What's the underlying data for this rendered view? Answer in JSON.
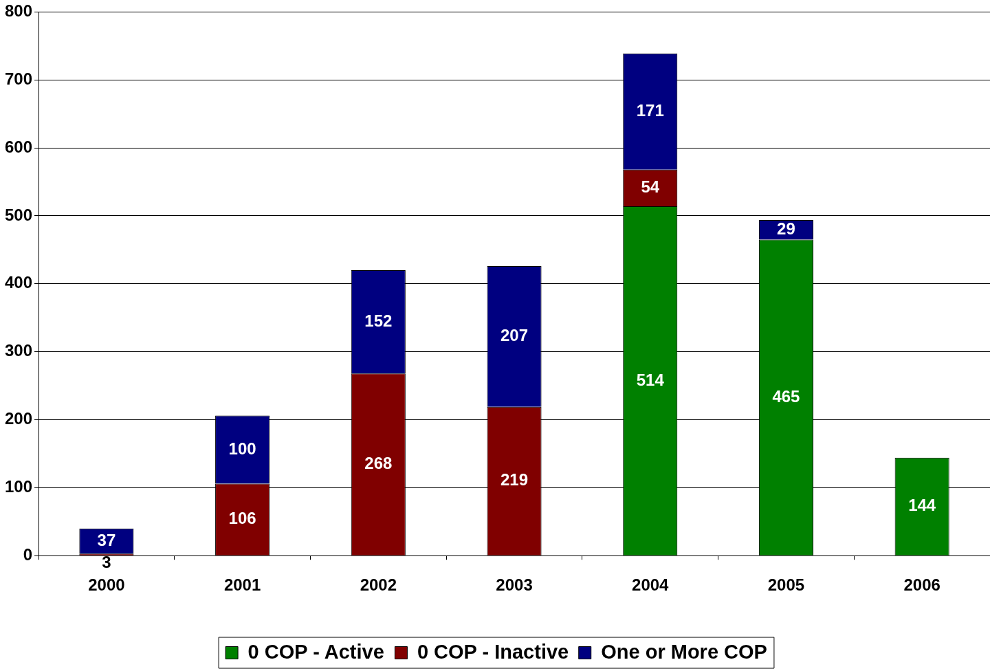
{
  "chart_data": {
    "type": "bar",
    "stacked": true,
    "categories": [
      "2000",
      "2001",
      "2002",
      "2003",
      "2004",
      "2005",
      "2006"
    ],
    "series": [
      {
        "name": "0 COP - Active",
        "color": "#008000",
        "values": [
          null,
          null,
          null,
          null,
          514,
          465,
          144
        ]
      },
      {
        "name": "0 COP - Inactive",
        "color": "#800000",
        "values": [
          3,
          106,
          268,
          219,
          54,
          null,
          null
        ]
      },
      {
        "name": "One or More COP",
        "color": "#000080",
        "values": [
          37,
          100,
          152,
          207,
          171,
          29,
          null
        ]
      }
    ],
    "ylim": [
      0,
      800
    ],
    "yticks": [
      0,
      100,
      200,
      300,
      400,
      500,
      600,
      700,
      800
    ],
    "grid": "y",
    "legend": "bottom",
    "data_labels": true
  }
}
